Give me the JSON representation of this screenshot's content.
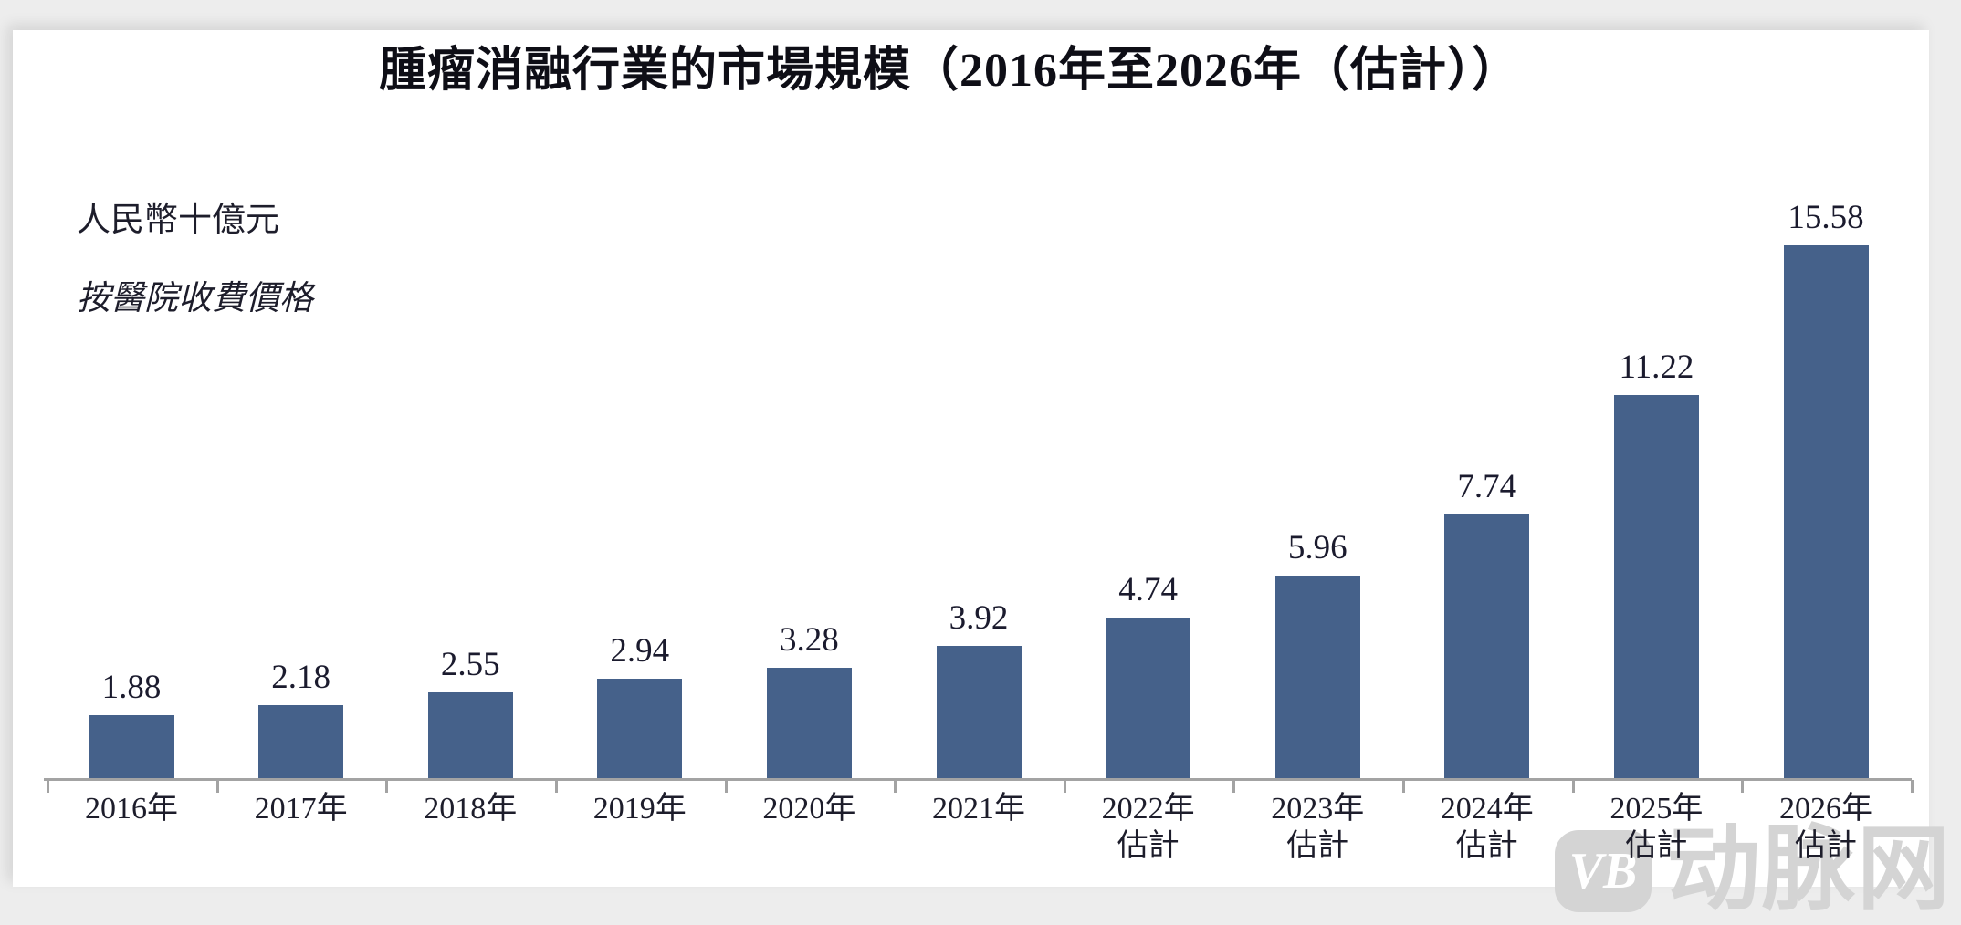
{
  "watermark": {
    "logo_text": "VB",
    "brand_text": "动脉网"
  },
  "chart_data": {
    "type": "bar",
    "title": "腫瘤消融行業的市場規模（2016年至2026年（估計））",
    "unit_label": "人民幣十億元",
    "price_basis_note": "按醫院收費價格",
    "categories": [
      "2016年",
      "2017年",
      "2018年",
      "2019年",
      "2020年",
      "2021年",
      "2022年估計",
      "2023年估計",
      "2024年估計",
      "2025年估計",
      "2026年估計"
    ],
    "x_labels": [
      {
        "line1": "2016年",
        "line2": ""
      },
      {
        "line1": "2017年",
        "line2": ""
      },
      {
        "line1": "2018年",
        "line2": ""
      },
      {
        "line1": "2019年",
        "line2": ""
      },
      {
        "line1": "2020年",
        "line2": ""
      },
      {
        "line1": "2021年",
        "line2": ""
      },
      {
        "line1": "2022年",
        "line2": "估計"
      },
      {
        "line1": "2023年",
        "line2": "估計"
      },
      {
        "line1": "2024年",
        "line2": "估計"
      },
      {
        "line1": "2025年",
        "line2": "估計"
      },
      {
        "line1": "2026年",
        "line2": "估計"
      }
    ],
    "values": [
      1.88,
      2.18,
      2.55,
      2.94,
      3.28,
      3.92,
      4.74,
      5.96,
      7.74,
      11.22,
      15.58
    ],
    "value_labels": [
      "1.88",
      "2.18",
      "2.55",
      "2.94",
      "3.28",
      "3.92",
      "4.74",
      "5.96",
      "7.74",
      "11.22",
      "15.58"
    ],
    "ylim": [
      0,
      16
    ],
    "xlabel": "",
    "ylabel": "人民幣十億元",
    "grid": false,
    "legend": "none",
    "bar_color": "#45618a",
    "axis_color": "#a3a3a3",
    "label_color": "#1b1b2e"
  }
}
